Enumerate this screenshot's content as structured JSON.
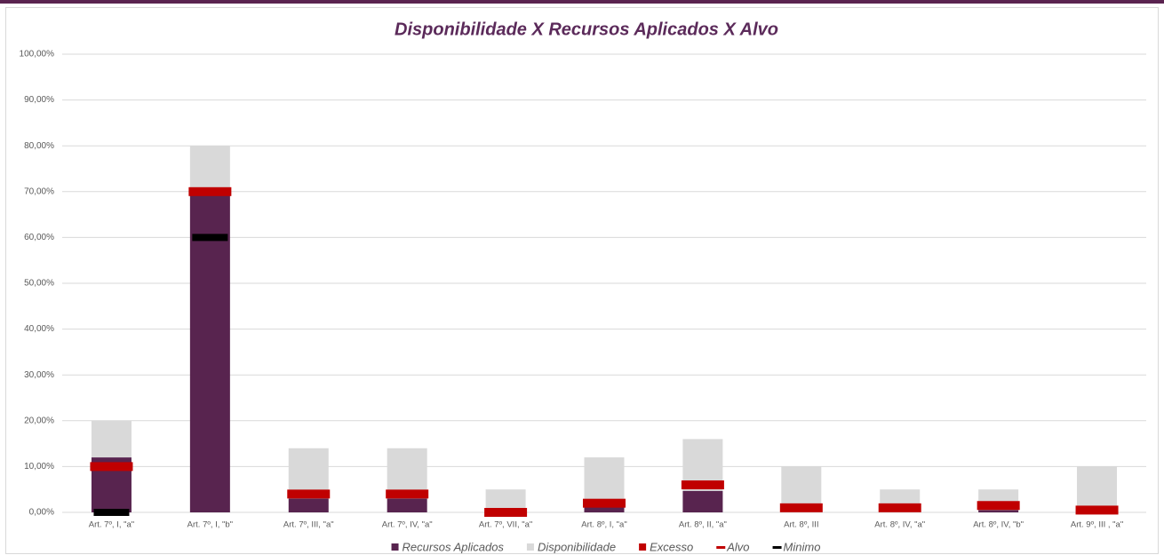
{
  "chart_data": {
    "type": "bar",
    "title": "Disponibilidade X Recursos Aplicados X Alvo",
    "categories": [
      "Art. 7º, I, \"a\"",
      "Art. 7º, I, \"b\"",
      "Art. 7º, III, \"a\"",
      "Art. 7º, IV, \"a\"",
      "Art. 7º, VII, \"a\"",
      "Art. 8º, I, \"a\"",
      "Art. 8º, II, \"a\"",
      "Art. 8º, III",
      "Art. 8º, IV, \"a\"",
      "Art. 8º, IV, \"b\"",
      "Art. 9º, III , \"a\""
    ],
    "series": [
      {
        "name": "Recursos Aplicados",
        "color": "#58244f",
        "kind": "stack",
        "values": [
          12,
          70,
          3,
          3,
          0,
          1.5,
          4.7,
          0,
          0,
          0.5,
          0
        ]
      },
      {
        "name": "Disponibilidade",
        "color": "#d9d9d9",
        "kind": "stack",
        "values": [
          8,
          10,
          11,
          11,
          5,
          10.5,
          11.3,
          10,
          5,
          4.5,
          10
        ]
      },
      {
        "name": "Excesso",
        "color": "#c00000",
        "kind": "stack",
        "values": [
          0,
          0,
          0,
          0,
          0,
          0,
          0,
          0,
          0,
          0,
          0
        ]
      },
      {
        "name": "Alvo",
        "color": "#c00000",
        "kind": "marker",
        "values": [
          10,
          70,
          4,
          4,
          0,
          2,
          6,
          1,
          1,
          1.5,
          0.5
        ]
      },
      {
        "name": "Minimo",
        "color": "#000000",
        "kind": "marker",
        "values": [
          0,
          60,
          null,
          null,
          null,
          null,
          null,
          null,
          null,
          null,
          null
        ]
      }
    ],
    "ylim": [
      0,
      100
    ],
    "yticks": [
      {
        "value": 0,
        "label": "0,00%"
      },
      {
        "value": 10,
        "label": "10,00%"
      },
      {
        "value": 20,
        "label": "20,00%"
      },
      {
        "value": 30,
        "label": "30,00%"
      },
      {
        "value": 40,
        "label": "40,00%"
      },
      {
        "value": 50,
        "label": "50,00%"
      },
      {
        "value": 60,
        "label": "60,00%"
      },
      {
        "value": 70,
        "label": "70,00%"
      },
      {
        "value": 80,
        "label": "80,00%"
      },
      {
        "value": 90,
        "label": "90,00%"
      },
      {
        "value": 100,
        "label": "100,00%"
      }
    ],
    "grid": true,
    "legend": "bottom"
  }
}
